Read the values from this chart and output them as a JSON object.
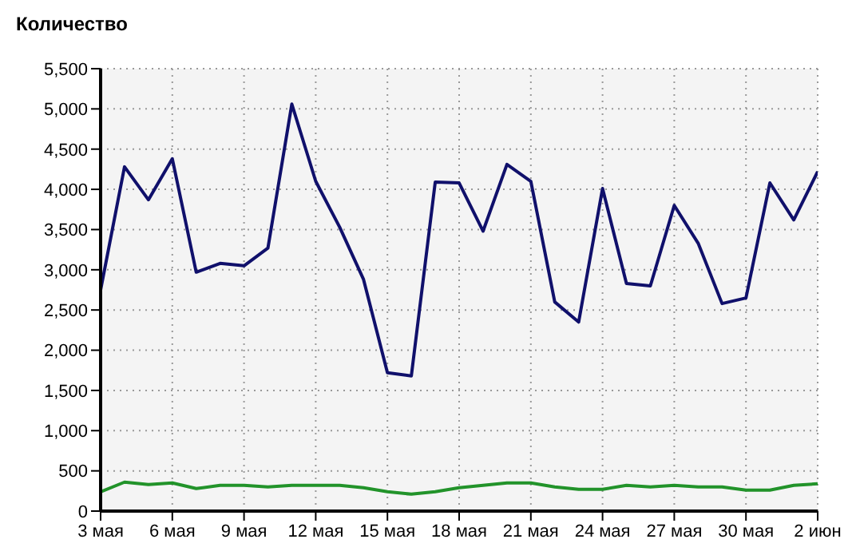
{
  "chart_data": {
    "type": "line",
    "title": "Количество",
    "categories": [
      "3 мая",
      null,
      null,
      "6 мая",
      null,
      null,
      "9 мая",
      null,
      null,
      "12 мая",
      null,
      null,
      "15 мая",
      null,
      null,
      "18 мая",
      null,
      null,
      "21 мая",
      null,
      null,
      "24 мая",
      null,
      null,
      "27 мая",
      null,
      null,
      "30 мая",
      null,
      null,
      "2 июн"
    ],
    "series": [
      {
        "color": "#10106b",
        "values": [
          2750,
          4280,
          3870,
          4380,
          2970,
          3080,
          3050,
          3270,
          5060,
          4100,
          3530,
          2880,
          1720,
          1680,
          4090,
          4080,
          3480,
          4310,
          4100,
          2600,
          2350,
          4010,
          2830,
          2800,
          3800,
          3330,
          2580,
          2650,
          4080,
          3620,
          4220
        ]
      },
      {
        "color": "#22932a",
        "values": [
          240,
          360,
          330,
          350,
          280,
          320,
          320,
          300,
          320,
          320,
          320,
          290,
          240,
          210,
          240,
          290,
          320,
          350,
          350,
          300,
          270,
          270,
          320,
          300,
          320,
          300,
          300,
          260,
          260,
          320,
          340
        ]
      }
    ],
    "ylim": [
      0,
      5500
    ],
    "yticks": [
      0,
      500,
      {
        "value": 1000,
        "label": "1,000"
      },
      {
        "value": 1500,
        "label": "1,500"
      },
      {
        "value": 2000,
        "label": "2,000"
      },
      {
        "value": 2500,
        "label": "2,500"
      },
      {
        "value": 3000,
        "label": "3,000"
      },
      {
        "value": 3500,
        "label": "3,500"
      },
      {
        "value": 4000,
        "label": "4,000"
      },
      {
        "value": 4500,
        "label": "4,500"
      },
      {
        "value": 5000,
        "label": "5,000"
      },
      {
        "value": 5500,
        "label": "5,500"
      }
    ],
    "grid": true,
    "marker": "none",
    "line_style": "solid"
  }
}
